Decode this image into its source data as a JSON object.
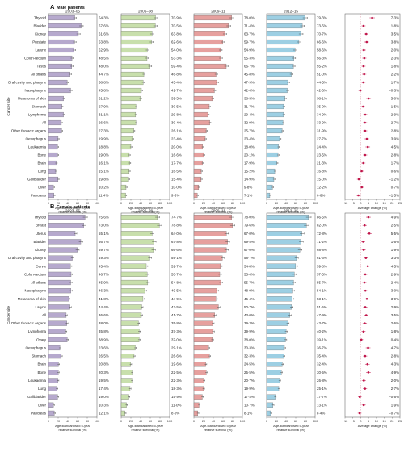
{
  "figure": {
    "y_axis_label": "Cancer site",
    "periods": [
      "2003–05",
      "2006–08",
      "2009–11",
      "2012–15"
    ],
    "survival_axis_label": "Age-standardised 5-year relative survival (%)",
    "survival_ticks": [
      "0",
      "20",
      "40",
      "60",
      "80",
      "100"
    ],
    "change_axis_label": "Average change (%)",
    "change_ticks": [
      "−10",
      "−5",
      "0",
      "5",
      "10",
      "15",
      "20",
      "25"
    ],
    "colors": {
      "p1": "#b6a9cd",
      "p2": "#c8dfac",
      "p3": "#e6a09e",
      "p4": "#9dcfe3",
      "change": "#c0154a",
      "zero_line": "#d99aa8"
    }
  },
  "chart_data": [
    {
      "type": "bar",
      "panel_letter": "A",
      "title": "Male patients",
      "categories": [
        "Thyroid",
        "Bladder",
        "Kidney",
        "Prostate",
        "Larynx",
        "Colon-rectum",
        "Testis",
        "All others",
        "Oral cavity and pharynx",
        "Nasopharynx",
        "Melanoma of skin",
        "Stomach",
        "Lymphoma",
        "All",
        "Other thoracic organs",
        "Oesophagus",
        "Leukaemia",
        "Bone",
        "Brain",
        "Lung",
        "Gallbladder",
        "Liver",
        "Pancreas"
      ],
      "series": [
        {
          "name": "2003–05",
          "values": [
            54.3,
            67.6,
            61.6,
            53.8,
            52.9,
            48.5,
            48.0,
            44.7,
            38.8,
            45.8,
            31.2,
            27.9,
            31.1,
            26.6,
            27.3,
            19.9,
            18.8,
            19.0,
            16.1,
            15.1,
            19.8,
            10.2,
            11.4
          ],
          "labels": [
            "54·3%",
            "67·6%",
            "61·6%",
            "53·8%",
            "52·9%",
            "48·5%",
            "48·0%",
            "44·7%",
            "38·8%",
            "45·8%",
            "31·2%",
            "27·9%",
            "31·1%",
            "26·6%",
            "27·3%",
            "19·9%",
            "18·8%",
            "19·0%",
            "16·1%",
            "15·1%",
            "19·8%",
            "10·2%",
            "11·4%"
          ]
        },
        {
          "name": "2006–08",
          "values": [
            70.9,
            70.5,
            63.8,
            62.6,
            54.0,
            53.3,
            59.4,
            46.8,
            45.4,
            41.7,
            39.5,
            30.5,
            29.8,
            30.4,
            26.1,
            23.4,
            20.0,
            16.6,
            17.7,
            16.5,
            15.4,
            10.0,
            9.3
          ],
          "labels": [
            "70·9%",
            "70·5%",
            "63·8%",
            "62·6%",
            "54·0%",
            "53·3%",
            "59·4%",
            "46·8%",
            "45·4%",
            "41·7%",
            "39·5%",
            "30·5%",
            "29·8%",
            "30·4%",
            "26·1%",
            "23·4%",
            "20·0%",
            "16·6%",
            "17·7%",
            "16·5%",
            "15·4%",
            "10·0%",
            "9·3%"
          ]
        },
        {
          "name": "2009–11",
          "values": [
            78.0,
            71.4,
            63.7,
            59.7,
            54.9,
            55.3,
            66.7,
            45.8,
            47.9,
            42.4,
            38.3,
            31.7,
            29.4,
            32.9,
            25.7,
            23.4,
            18.0,
            20.1,
            17.9,
            15.2,
            14.9,
            9.8,
            7.1
          ],
          "labels": [
            "78·0%",
            "71·4%",
            "63·7%",
            "59·7%",
            "54·9%",
            "55·3%",
            "66·7%",
            "45·8%",
            "47·9%",
            "42·4%",
            "38·3%",
            "31·7%",
            "29·4%",
            "32·9%",
            "25·7%",
            "23·4%",
            "18·0%",
            "20·1%",
            "17·9%",
            "15·2%",
            "14·9%",
            "9·8%",
            "7·1%"
          ]
        },
        {
          "name": "2012–15",
          "values": [
            79.3,
            73.5,
            70.7,
            66.6,
            58.6,
            56.3,
            55.2,
            51.0,
            44.5,
            42.6,
            38.1,
            35.0,
            34.9,
            33.9,
            31.9,
            27.7,
            24.4,
            23.5,
            21.3,
            16.8,
            15.0,
            12.2,
            6.6
          ],
          "labels": [
            "79·3%",
            "73·5%",
            "70·7%",
            "66·6%",
            "58·6%",
            "56·3%",
            "55·2%",
            "51·0%",
            "44·5%",
            "42·6%",
            "38·1%",
            "35·0%",
            "34·9%",
            "33·9%",
            "31·9%",
            "27·7%",
            "24·4%",
            "23·5%",
            "21·3%",
            "16·8%",
            "15·0%",
            "12·2%",
            "6·6%"
          ]
        }
      ],
      "average_change": [
        7.3,
        1.8,
        3.5,
        3.8,
        2.0,
        2.3,
        1.8,
        2.2,
        1.7,
        -0.3,
        5.0,
        1.5,
        2.9,
        2.7,
        2.8,
        3.9,
        4.5,
        2.8,
        1.7,
        0.6,
        -1.2,
        0.7,
        -1.5
      ],
      "average_change_labels": [
        "7·3%",
        "1·8%",
        "3·5%",
        "3·8%",
        "2·0%",
        "2·3%",
        "1·8%",
        "2·2%",
        "1·7%",
        "−0·3%",
        "5·0%",
        "1·5%",
        "2·9%",
        "2·7%",
        "2·8%",
        "3·9%",
        "4·5%",
        "2·8%",
        "1·7%",
        "0·6%",
        "−1·2%",
        "0·7%",
        "−1·5%"
      ],
      "ylim": [
        0,
        100
      ],
      "change_xlim": [
        -10,
        25
      ]
    },
    {
      "type": "bar",
      "panel_letter": "B",
      "title": "Female patients",
      "categories": [
        "Thyroid",
        "Breast",
        "Uterus",
        "Bladder",
        "Kidney",
        "Oral cavity and pharynx",
        "Cervix",
        "Colon-rectum",
        "All others",
        "Nasopharynx",
        "Melanoma of skin",
        "Larynx",
        "All",
        "Other thoracic organs",
        "Lymphoma",
        "Ovary",
        "Oesophagus",
        "Stomach",
        "Brain",
        "Bone",
        "Leukaemia",
        "Lung",
        "Gallbladder",
        "Liver",
        "Pancreas"
      ],
      "series": [
        {
          "name": "2003–05",
          "values": [
            75.6,
            73.0,
            55.1,
            66.7,
            59.7,
            49.3,
            45.4,
            46.7,
            45.9,
            46.3,
            41.8,
            44.4,
            36.6,
            38.0,
            35.8,
            38.9,
            23.6,
            26.5,
            20.8,
            20.3,
            19.5,
            17.4,
            19.0,
            10.3,
            12.1
          ],
          "labels": [
            "75·6%",
            "73·0%",
            "55·1%",
            "66·7%",
            "59·7%",
            "49·3%",
            "45·4%",
            "46·7%",
            "45·9%",
            "46·3%",
            "41·8%",
            "44·4%",
            "36·6%",
            "38·0%",
            "35·8%",
            "38·9%",
            "23·6%",
            "26·5%",
            "20·8%",
            "20·3%",
            "19·5%",
            "17·4%",
            "19·0%",
            "10·3%",
            "12·1%"
          ]
        },
        {
          "name": "2006–08",
          "values": [
            74.7,
            78.8,
            64.0,
            67.8,
            66.6,
            59.1,
            51.7,
            53.7,
            54.8,
            49.5,
            44.9,
            42.5,
            41.7,
            35.8,
            37.3,
            37.0,
            29.1,
            26.6,
            19.6,
            22.5,
            22.3,
            18.3,
            15.9,
            11.0,
            8.0
          ],
          "labels": [
            "74·7%",
            "78·8%",
            "64·0%",
            "67·8%",
            "66·6%",
            "59·1%",
            "51·7%",
            "53·7%",
            "54·8%",
            "49·5%",
            "44·9%",
            "42·5%",
            "41·7%",
            "35·8%",
            "37·3%",
            "37·0%",
            "29·1%",
            "26·6%",
            "19·6%",
            "22·5%",
            "22·3%",
            "18·3%",
            "15·9%",
            "11·0%",
            "8·0%"
          ]
        },
        {
          "name": "2009–11",
          "values": [
            78.0,
            79.6,
            67.0,
            69.5,
            67.0,
            58.7,
            54.8,
            53.4,
            55.7,
            48.0,
            45.4,
            50.7,
            43.0,
            39.3,
            39.9,
            38.0,
            30.3,
            32.3,
            24.5,
            25.5,
            20.7,
            19.9,
            17.4,
            10.7,
            8.1
          ],
          "labels": [
            "78·0%",
            "79·6%",
            "67·0%",
            "69·5%",
            "67·0%",
            "58·7%",
            "54·8%",
            "53·4%",
            "55·7%",
            "48·0%",
            "45·4%",
            "50·7%",
            "43·0%",
            "39·3%",
            "39·9%",
            "38·0%",
            "30·3%",
            "32·3%",
            "24·5%",
            "25·5%",
            "20·7%",
            "19·9%",
            "17·4%",
            "10·7%",
            "8·1%"
          ]
        },
        {
          "name": "2012–15",
          "values": [
            86.5,
            82.0,
            72.8,
            71.2,
            68.8,
            61.6,
            59.8,
            57.3,
            55.7,
            54.1,
            53.1,
            51.5,
            47.9,
            43.7,
            40.2,
            39.1,
            36.7,
            35.4,
            32.4,
            30.5,
            26.8,
            25.1,
            17.7,
            13.1,
            8.4
          ],
          "labels": [
            "86·5%",
            "82·0%",
            "72·8%",
            "71·2%",
            "68·8%",
            "61·6%",
            "59·8%",
            "57·3%",
            "55·7%",
            "54·1%",
            "53·1%",
            "51·5%",
            "47·9%",
            "43·7%",
            "40·2%",
            "39·1%",
            "36·7%",
            "35·4%",
            "32·4%",
            "30·5%",
            "26·8%",
            "25·1%",
            "17·7%",
            "13·1%",
            "8·4%"
          ]
        }
      ],
      "average_change": [
        4.9,
        2.5,
        5.5,
        1.6,
        1.9,
        3.3,
        4.5,
        2.9,
        2.4,
        3.0,
        3.9,
        2.9,
        3.5,
        2.6,
        1.8,
        0.4,
        4.7,
        2.8,
        4.3,
        4.9,
        2.0,
        2.7,
        -0.6,
        1.9,
        -0.7
      ],
      "average_change_labels": [
        "4·9%",
        "2·5%",
        "5·5%",
        "1·6%",
        "1·9%",
        "3·3%",
        "4·5%",
        "2·9%",
        "2·4%",
        "3·0%",
        "3·9%",
        "2·9%",
        "3·5%",
        "2·6%",
        "1·8%",
        "0·4%",
        "4·7%",
        "2·8%",
        "4·3%",
        "4·9%",
        "2·0%",
        "2·7%",
        "−0·6%",
        "1·9%",
        "−0·7%"
      ],
      "ylim": [
        0,
        100
      ],
      "change_xlim": [
        -10,
        25
      ]
    }
  ]
}
